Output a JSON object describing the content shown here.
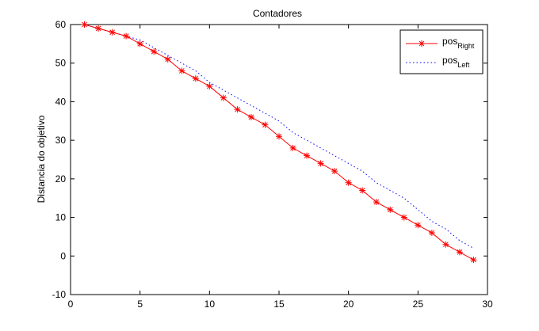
{
  "chart_data": {
    "type": "line",
    "title": "Contadores",
    "xlabel": "",
    "ylabel": "Distancia do objetivo",
    "xlim": [
      0,
      30
    ],
    "ylim": [
      -10,
      60
    ],
    "xticks": [
      0,
      5,
      10,
      15,
      20,
      25,
      30
    ],
    "yticks": [
      -10,
      0,
      10,
      20,
      30,
      40,
      50,
      60
    ],
    "grid": false,
    "legend_position": "top-right",
    "series": [
      {
        "name_base": "pos",
        "name_sub": "Right",
        "color": "#ff0000",
        "style": "solid",
        "marker": "asterisk",
        "x": [
          1,
          2,
          3,
          4,
          5,
          6,
          7,
          8,
          9,
          10,
          11,
          12,
          13,
          14,
          15,
          16,
          17,
          18,
          19,
          20,
          21,
          22,
          23,
          24,
          25,
          26,
          27,
          28,
          29
        ],
        "y": [
          60,
          59,
          58,
          57,
          55,
          53,
          51,
          48,
          46,
          44,
          41,
          38,
          36,
          34,
          31,
          28,
          26,
          24,
          22,
          19,
          17,
          14,
          12,
          10,
          8,
          6,
          3,
          1,
          -1
        ]
      },
      {
        "name_base": "pos",
        "name_sub": "Left",
        "color": "#0000ff",
        "style": "dotted",
        "marker": "none",
        "x": [
          1,
          2,
          3,
          4,
          5,
          6,
          7,
          8,
          9,
          10,
          11,
          12,
          13,
          14,
          15,
          16,
          17,
          18,
          19,
          20,
          21,
          22,
          23,
          24,
          25,
          26,
          27,
          28,
          29
        ],
        "y": [
          60,
          59,
          58,
          57,
          56,
          54,
          52,
          50,
          48,
          45,
          43,
          41,
          39,
          37,
          35,
          32,
          30,
          28,
          26,
          24,
          22,
          19,
          17,
          15,
          12,
          9,
          7,
          4,
          2
        ]
      }
    ]
  }
}
